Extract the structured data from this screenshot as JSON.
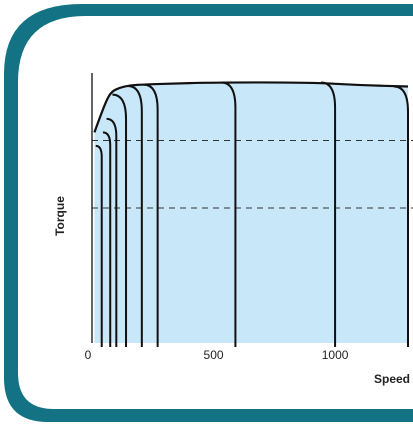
{
  "chart_data": {
    "type": "line",
    "title": "",
    "xlabel": "Speed",
    "ylabel": "Torque",
    "xlim": [
      0,
      1300
    ],
    "x_ticks": [
      {
        "value": 0,
        "label": "0"
      },
      {
        "value": 500,
        "label": "500"
      },
      {
        "value": 1000,
        "label": "1000"
      }
    ],
    "ylim": [
      0,
      100
    ],
    "grid": false,
    "reference_lines_y": [
      75,
      50
    ],
    "envelope": [
      [
        10,
        78
      ],
      [
        30,
        83
      ],
      [
        60,
        90
      ],
      [
        80,
        93
      ],
      [
        110,
        94.5
      ],
      [
        150,
        95.3
      ],
      [
        200,
        95.7
      ],
      [
        300,
        96
      ],
      [
        500,
        96.5
      ],
      [
        900,
        96.5
      ],
      [
        1100,
        95.5
      ],
      [
        1300,
        95
      ]
    ],
    "cutoffs": [
      {
        "start_y": 73,
        "x_end": 40
      },
      {
        "start_y": 78,
        "x_end": 75
      },
      {
        "start_y": 83,
        "x_end": 100
      },
      {
        "start_y": 92,
        "x_end": 140
      },
      {
        "start_y": 95.2,
        "x_end": 205
      },
      {
        "start_y": 95.7,
        "x_end": 270
      },
      {
        "start_y": 96.5,
        "x_end": 590
      },
      {
        "start_y": 96.5,
        "x_end": 1000
      },
      {
        "start_y": 95,
        "x_end": 1300
      }
    ],
    "colors": {
      "frame": "#137384",
      "fill": "#c8e7f8",
      "line": "#111111"
    }
  }
}
